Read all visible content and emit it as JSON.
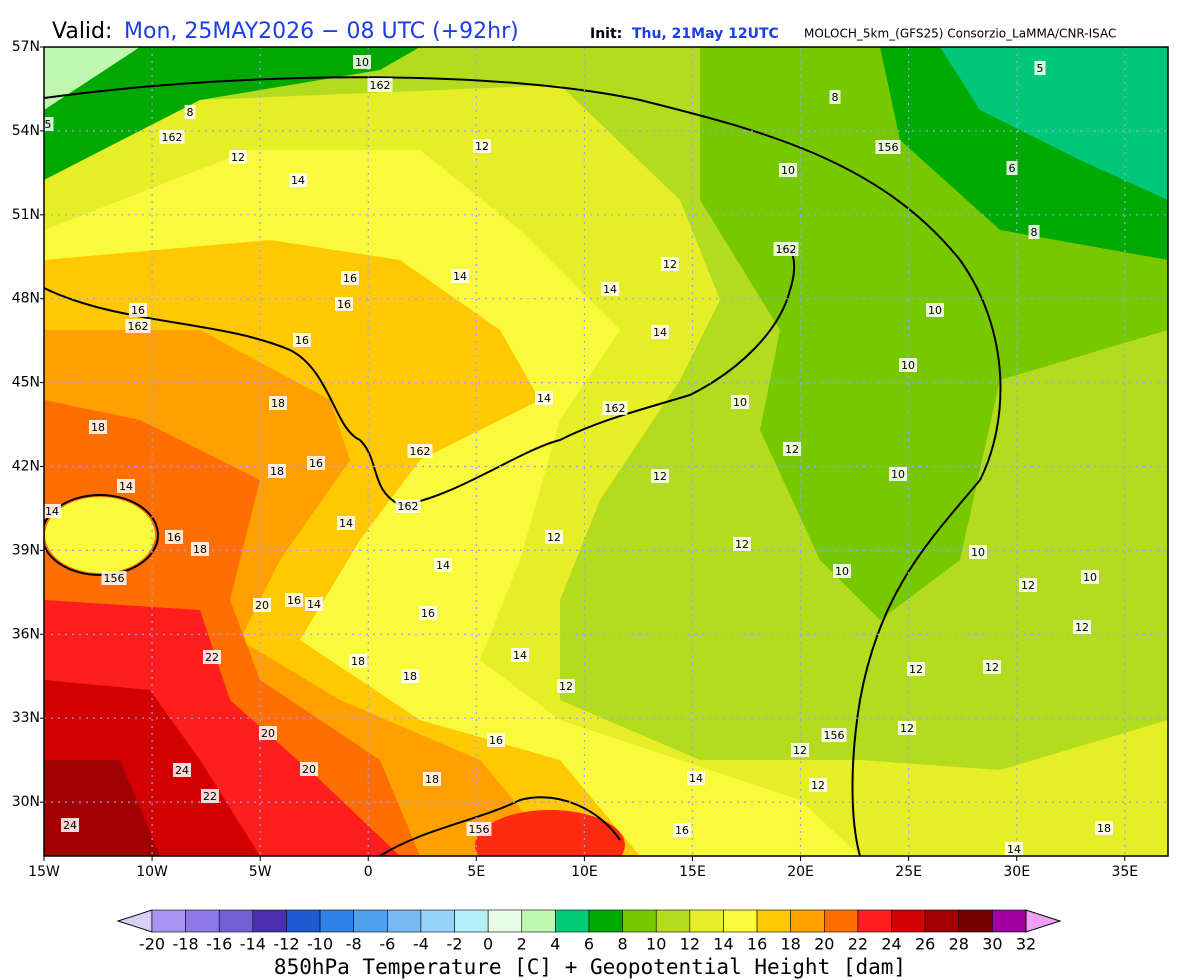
{
  "header": {
    "valid_label": "Valid:",
    "valid": "Mon, 25MAY2026 − 08 UTC (+92hr)",
    "init_label": "Init:",
    "init": "Thu, 21May 12UTC",
    "model": "MOLOCH_5km_(GFS25) Consorzio_LaMMA/CNR-ISAC"
  },
  "map": {
    "lat_labels": [
      "57N",
      "54N",
      "51N",
      "48N",
      "45N",
      "42N",
      "39N",
      "36N",
      "33N",
      "30N"
    ],
    "lon_labels": [
      "15W",
      "10W",
      "5W",
      "0",
      "5E",
      "10E",
      "15E",
      "20E",
      "25E",
      "30E",
      "35E"
    ],
    "contour_labels": [
      10,
      162,
      8,
      162,
      5,
      12,
      14,
      12,
      10,
      156,
      6,
      8,
      5,
      8,
      162,
      12,
      14,
      16,
      16,
      14,
      16,
      162,
      16,
      14,
      10,
      10,
      18,
      18,
      14,
      162,
      10,
      12,
      162,
      16,
      18,
      12,
      10,
      14,
      14,
      162,
      14,
      16,
      18,
      12,
      12,
      10,
      156,
      14,
      20,
      16,
      14,
      16,
      10,
      12,
      10,
      22,
      18,
      18,
      14,
      12,
      12,
      12,
      12,
      20,
      16,
      12,
      156,
      12,
      24,
      20,
      18,
      14,
      12,
      22,
      156,
      16,
      14,
      18,
      24
    ]
  },
  "colorbar": {
    "labels": [
      -20,
      -18,
      -16,
      -14,
      -12,
      -10,
      -8,
      -6,
      -4,
      -2,
      0,
      2,
      4,
      6,
      8,
      10,
      12,
      14,
      16,
      18,
      20,
      22,
      24,
      26,
      28,
      30,
      32
    ],
    "colors": [
      "#d8d0f5",
      "#a894f2",
      "#8c78e6",
      "#7460d6",
      "#4a30b0",
      "#1e5ad2",
      "#2f82e6",
      "#50a0f0",
      "#78b9f5",
      "#96d2fa",
      "#b4f0fa",
      "#e6ffe6",
      "#c0f8b0",
      "#00cc78",
      "#00a800",
      "#78c800",
      "#b4dc1e",
      "#e6ee28",
      "#fafa3c",
      "#ffc800",
      "#ffa000",
      "#ff6e00",
      "#ff1e1e",
      "#d20000",
      "#a00000",
      "#780000",
      "#a000a0",
      "#ff00ff",
      "#f0a0f0"
    ],
    "title": "850hPa Temperature [C] + Geopotential Height [dam]"
  }
}
